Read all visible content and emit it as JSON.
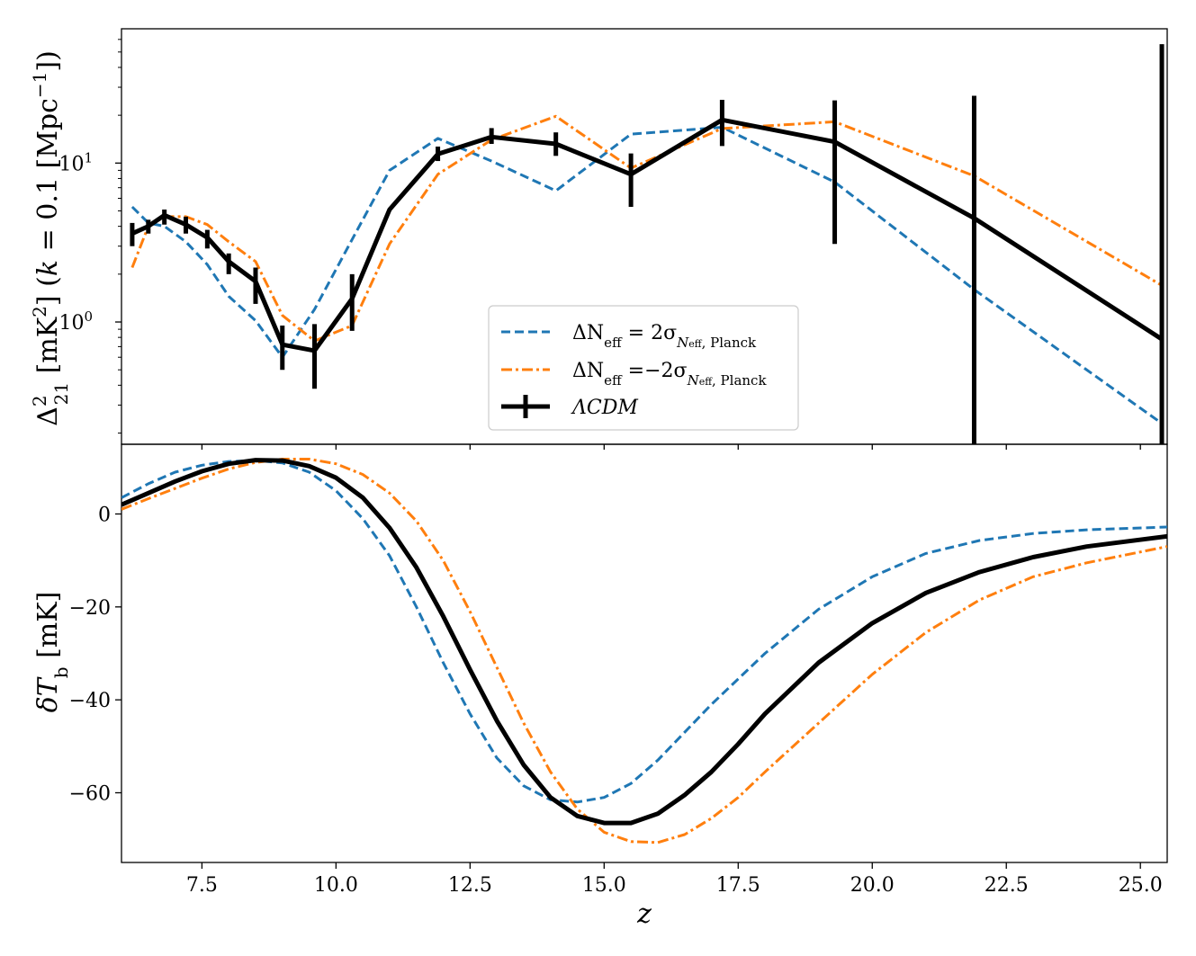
{
  "colors": {
    "dNeff_plus": "#1f77b4",
    "dNeff_minus": "#ff7f0e",
    "lcdm": "#000000",
    "frame": "#000000",
    "legend_border": "#cccccc"
  },
  "legend": {
    "entries": [
      {
        "label": "ΔN",
        "sub": "eff",
        "rest": " = 2σ",
        "sub2": "N",
        "sub3": "eff",
        "sub4": ", Planck",
        "series": "dNeff_plus",
        "style": "dashed"
      },
      {
        "label": "ΔN",
        "sub": "eff",
        "rest": " =−2σ",
        "sub2": "N",
        "sub3": "eff",
        "sub4": ", Planck",
        "series": "dNeff_minus",
        "style": "dashdot"
      },
      {
        "label": "ΛCDM",
        "series": "lcdm",
        "style": "solid-errorbar"
      }
    ]
  },
  "chart_data": [
    {
      "type": "line",
      "panel": "top",
      "scale": "log",
      "ylabel": "Δ²₂₁ [mK²] (k = 0.1 [Mpc⁻¹])",
      "ylabel_parts": {
        "delta": "Δ",
        "sup": "2",
        "sub": "21",
        "unit": " [mK",
        "unit_sup": "2",
        "rest1": "] (",
        "k": "k",
        "rest2": " = 0.1 [Mpc",
        "mpc_sup": "−1",
        "rest3": "])"
      },
      "xlim": [
        6.0,
        25.5
      ],
      "ylim": [
        0.17,
        70
      ],
      "yticks": [
        {
          "value": 1,
          "base": "10",
          "exp": "0"
        },
        {
          "value": 10,
          "base": "10",
          "exp": "1"
        }
      ],
      "series": [
        {
          "name": "ΔN_eff = 2σ_Neff,Planck",
          "key": "dNeff_plus",
          "x": [
            6.2,
            6.5,
            6.8,
            7.2,
            7.6,
            8.0,
            8.5,
            9.0,
            9.6,
            10.3,
            11.0,
            11.9,
            12.9,
            14.1,
            15.5,
            17.2,
            19.3,
            21.9,
            25.4
          ],
          "y": [
            5.3,
            4.2,
            4.0,
            3.2,
            2.3,
            1.45,
            1.02,
            0.6,
            1.2,
            3.3,
            9.0,
            14.3,
            10.3,
            6.7,
            15.2,
            16.8,
            7.6,
            1.6,
            0.23
          ]
        },
        {
          "name": "ΔN_eff = −2σ_Neff,Planck",
          "key": "dNeff_minus",
          "x": [
            6.2,
            6.5,
            6.8,
            7.2,
            7.6,
            8.0,
            8.5,
            9.0,
            9.6,
            10.3,
            11.0,
            11.9,
            12.9,
            14.1,
            15.5,
            17.2,
            19.3,
            21.9,
            25.4
          ],
          "y": [
            2.2,
            4.0,
            4.6,
            4.6,
            4.1,
            3.2,
            2.4,
            1.1,
            0.76,
            0.95,
            3.1,
            8.5,
            14.0,
            19.7,
            9.3,
            16.5,
            18.2,
            8.3,
            1.7
          ]
        },
        {
          "name": "ΛCDM",
          "key": "lcdm",
          "x": [
            6.2,
            6.5,
            6.8,
            7.2,
            7.6,
            8.0,
            8.5,
            9.0,
            9.6,
            10.3,
            11.0,
            11.9,
            12.9,
            14.1,
            15.5,
            17.2,
            19.3,
            21.9,
            25.4
          ],
          "y": [
            3.6,
            4.0,
            4.7,
            4.1,
            3.4,
            2.4,
            1.8,
            0.72,
            0.66,
            1.4,
            5.1,
            11.4,
            14.6,
            13.2,
            8.5,
            18.7,
            13.6,
            4.5,
            0.78
          ],
          "err_low": [
            3.0,
            3.6,
            4.1,
            3.6,
            2.9,
            2.0,
            1.3,
            0.5,
            0.38,
            0.88,
            null,
            10.3,
            13.2,
            11.1,
            5.3,
            12.8,
            3.1,
            0.1,
            0.1
          ],
          "err_high": [
            4.2,
            4.4,
            5.1,
            4.6,
            3.8,
            2.7,
            2.2,
            0.95,
            0.97,
            2.0,
            null,
            12.7,
            16.6,
            15.6,
            11.5,
            25.0,
            24.8,
            26.5,
            56.0
          ]
        }
      ]
    },
    {
      "type": "line",
      "panel": "bottom",
      "scale": "linear",
      "xlabel": "z",
      "ylabel": "δT_b [mK]",
      "ylabel_parts": {
        "delta": "δ",
        "T": "T",
        "sub": "b",
        "unit": " [mK]"
      },
      "xlim": [
        6.0,
        25.5
      ],
      "ylim": [
        -75,
        15
      ],
      "xticks": [
        7.5,
        10.0,
        12.5,
        15.0,
        17.5,
        20.0,
        22.5,
        25.0
      ],
      "xtick_labels": [
        "7.5",
        "10.0",
        "12.5",
        "15.0",
        "17.5",
        "20.0",
        "22.5",
        "25.0"
      ],
      "yticks": [
        0,
        -20,
        -40,
        -60
      ],
      "ytick_labels": [
        "0",
        "−20",
        "−40",
        "−60"
      ],
      "series": [
        {
          "name": "ΔN_eff = 2σ_Neff,Planck",
          "key": "dNeff_plus",
          "x": [
            6.0,
            6.5,
            7.0,
            7.5,
            8.0,
            8.5,
            9.0,
            9.5,
            10.0,
            10.5,
            11.0,
            11.5,
            12.0,
            12.5,
            13.0,
            13.5,
            14.0,
            14.5,
            15.0,
            15.5,
            16.0,
            16.5,
            17.0,
            17.5,
            18.0,
            19.0,
            20.0,
            21.0,
            22.0,
            23.0,
            24.0,
            25.5
          ],
          "y": [
            3.5,
            6.5,
            9.0,
            10.5,
            11.3,
            11.5,
            11.0,
            9.0,
            5.0,
            -1.0,
            -9.0,
            -20.0,
            -32.0,
            -43.0,
            -52.5,
            -58.5,
            -61.5,
            -62.0,
            -61.0,
            -58.0,
            -53.0,
            -47.0,
            -41.0,
            -35.5,
            -30.0,
            -20.5,
            -13.5,
            -8.5,
            -5.7,
            -4.2,
            -3.4,
            -2.8
          ]
        },
        {
          "name": "ΔN_eff = −2σ_Neff,Planck",
          "key": "dNeff_minus",
          "x": [
            6.0,
            6.5,
            7.0,
            7.5,
            8.0,
            8.5,
            9.0,
            9.5,
            10.0,
            10.5,
            11.0,
            11.5,
            12.0,
            12.5,
            13.0,
            13.5,
            14.0,
            14.5,
            15.0,
            15.5,
            16.0,
            16.5,
            17.0,
            17.5,
            18.0,
            19.0,
            20.0,
            21.0,
            22.0,
            23.0,
            24.0,
            25.5
          ],
          "y": [
            1.0,
            3.3,
            5.5,
            7.7,
            9.7,
            11.1,
            11.8,
            11.8,
            10.8,
            8.5,
            4.5,
            -1.5,
            -10.0,
            -21.0,
            -33.0,
            -45.0,
            -55.5,
            -63.5,
            -68.5,
            -70.5,
            -70.7,
            -69.0,
            -65.5,
            -61.0,
            -55.5,
            -45.0,
            -34.5,
            -25.5,
            -18.5,
            -13.5,
            -10.5,
            -7.0
          ]
        },
        {
          "name": "ΛCDM",
          "key": "lcdm",
          "x": [
            6.0,
            6.5,
            7.0,
            7.5,
            8.0,
            8.5,
            9.0,
            9.5,
            10.0,
            10.5,
            11.0,
            11.5,
            12.0,
            12.5,
            13.0,
            13.5,
            14.0,
            14.5,
            15.0,
            15.5,
            16.0,
            16.5,
            17.0,
            17.5,
            18.0,
            19.0,
            20.0,
            21.0,
            22.0,
            23.0,
            24.0,
            25.5
          ],
          "y": [
            2.0,
            4.5,
            7.0,
            9.2,
            10.8,
            11.6,
            11.5,
            10.3,
            7.8,
            3.5,
            -3.0,
            -11.5,
            -22.0,
            -33.5,
            -44.5,
            -54.0,
            -61.0,
            -65.0,
            -66.5,
            -66.5,
            -64.5,
            -60.5,
            -55.5,
            -49.5,
            -43.0,
            -32.0,
            -23.5,
            -17.0,
            -12.5,
            -9.3,
            -7.0,
            -4.8
          ]
        }
      ]
    }
  ]
}
